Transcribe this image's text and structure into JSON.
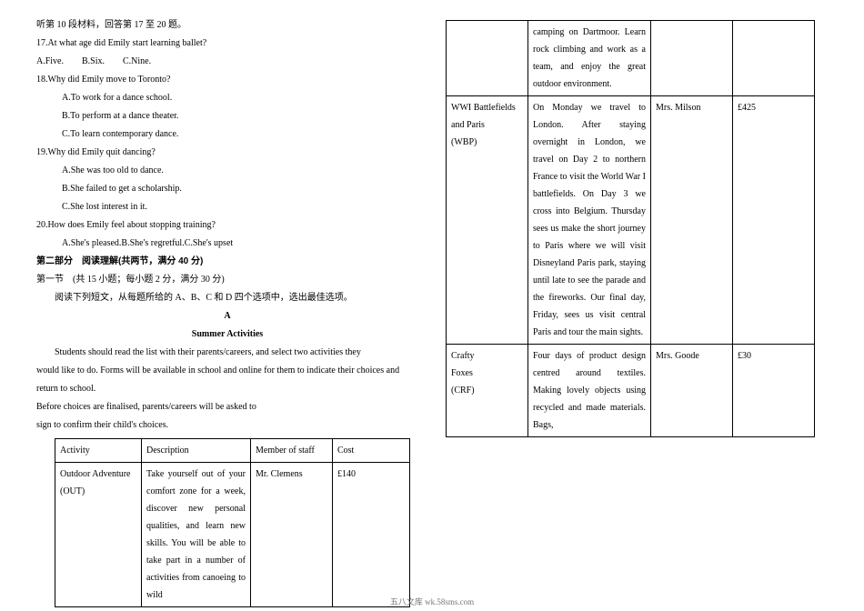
{
  "left": {
    "listenHdr": "听第 10 段材料，回答第 17 至 20 题。",
    "q17": "17.At what age did Emily start learning ballet?",
    "q17opts": "A.Five.  B.Six.  C.Nine.",
    "q18": "18.Why did Emily move to Toronto?",
    "q18a": "A.To work for a dance school.",
    "q18b": "B.To perform at a dance theater.",
    "q18c": "C.To learn contemporary dance.",
    "q19": "19.Why did Emily quit dancing?",
    "q19a": "A.She was too old to dance.",
    "q19b": "B.She failed to get a scholarship.",
    "q19c": "C.She lost interest in it.",
    "q20": "20.How does Emily feel about stopping training?",
    "q20opts": "A.She's pleased.B.She's regretful.C.She's upset",
    "section2": "第二部分 阅读理解(共两节，满分 40 分)",
    "subsection": "第一节 (共 15 小题；每小题 2 分，满分 30 分)",
    "instr": "阅读下列短文，从每题所给的 A、B、C 和 D 四个选项中，选出最佳选项。",
    "passA": "A",
    "passTitle": "Summer Activities",
    "para1": "Students should read the list with their parents/careers, and select two activities they",
    "para2": "would like to do. Forms will be available in school and online for them to indicate their choices and return to school.",
    "para3": "Before choices are finalised, parents/careers will be asked to",
    "para4": "sign to confirm their child's choices.",
    "t1": {
      "h1": "Activity",
      "h2": "Description",
      "h3": "Member of staff",
      "h4": "Cost",
      "r1c1a": "Outdoor Adventure",
      "r1c1b": "(OUT)",
      "r1c2": "Take yourself out of your comfort zone for a week, discover new personal qualities, and learn new skills. You will be able to take part in a number of activities from canoeing to wild",
      "r1c3": "Mr. Clemens",
      "r1c4": "£140"
    }
  },
  "right": {
    "cont": "camping on Dartmoor. Learn rock climbing and work as a team, and enjoy the great outdoor environment.",
    "r2c1a": "WWI Battlefields",
    "r2c1b": "and Paris",
    "r2c1c": "(WBP)",
    "r2c2": "On Monday we travel to London. After staying overnight in London, we travel on Day 2 to northern France to visit the World War I battlefields. On Day 3 we cross into Belgium. Thursday sees us make the short journey to Paris where we will visit Disneyland Paris park, staying until late to see the parade and the fireworks. Our final day, Friday, sees us visit central Paris and tour the main sights.",
    "r2c3": "Mrs. Milson",
    "r2c4": "£425",
    "r3c1a": "Crafty",
    "r3c1b": "Foxes",
    "r3c1c": "(CRF)",
    "r3c2": "Four days of product design centred around textiles. Making lovely objects using recycled and made materials. Bags,",
    "r3c3": "Mrs. Goode",
    "r3c4": "£30"
  },
  "footer": "五八文库 wk.58sms.com"
}
